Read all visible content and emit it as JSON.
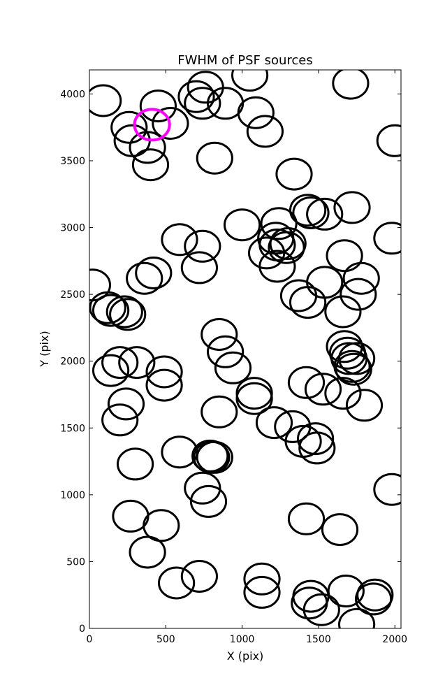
{
  "chart_data": {
    "type": "scatter",
    "title": "FWHM of PSF sources",
    "xlabel": "X (pix)",
    "ylabel": "Y (pix)",
    "xlim": [
      0,
      2040
    ],
    "ylim": [
      0,
      4180
    ],
    "xticks": [
      0,
      500,
      1000,
      1500,
      2000
    ],
    "yticks": [
      0,
      500,
      1000,
      1500,
      2000,
      2500,
      3000,
      3500,
      4000
    ],
    "grid": false,
    "marker": "circle",
    "marker_radius": 115,
    "series": [
      {
        "color": "#000000",
        "points": [
          [
            90,
            3950
          ],
          [
            260,
            3750
          ],
          [
            280,
            3650
          ],
          [
            380,
            3600
          ],
          [
            400,
            3470
          ],
          [
            450,
            3910
          ],
          [
            530,
            3780
          ],
          [
            700,
            3980
          ],
          [
            740,
            3930
          ],
          [
            760,
            4050
          ],
          [
            890,
            3930
          ],
          [
            820,
            3520
          ],
          [
            1050,
            4140
          ],
          [
            1090,
            3860
          ],
          [
            1150,
            3720
          ],
          [
            1710,
            4080
          ],
          [
            2000,
            3650
          ],
          [
            1340,
            3400
          ],
          [
            1430,
            3130
          ],
          [
            1450,
            3110
          ],
          [
            1540,
            3100
          ],
          [
            1720,
            3150
          ],
          [
            1980,
            2920
          ],
          [
            1000,
            3020
          ],
          [
            1240,
            3030
          ],
          [
            1220,
            2920
          ],
          [
            1230,
            2870
          ],
          [
            1290,
            2850
          ],
          [
            1300,
            2880
          ],
          [
            1160,
            2810
          ],
          [
            1230,
            2710
          ],
          [
            590,
            2910
          ],
          [
            740,
            2860
          ],
          [
            720,
            2700
          ],
          [
            420,
            2660
          ],
          [
            360,
            2620
          ],
          [
            20,
            2570
          ],
          [
            120,
            2400
          ],
          [
            140,
            2380
          ],
          [
            230,
            2370
          ],
          [
            250,
            2350
          ],
          [
            1670,
            2790
          ],
          [
            1780,
            2620
          ],
          [
            1760,
            2500
          ],
          [
            1370,
            2490
          ],
          [
            1430,
            2440
          ],
          [
            1540,
            2590
          ],
          [
            1660,
            2370
          ],
          [
            850,
            2200
          ],
          [
            890,
            2070
          ],
          [
            940,
            1950
          ],
          [
            1670,
            2110
          ],
          [
            1690,
            2060
          ],
          [
            1700,
            2020
          ],
          [
            1720,
            1960
          ],
          [
            1730,
            1940
          ],
          [
            1750,
            2020
          ],
          [
            140,
            1930
          ],
          [
            200,
            1990
          ],
          [
            310,
            1990
          ],
          [
            490,
            1920
          ],
          [
            490,
            1820
          ],
          [
            1420,
            1840
          ],
          [
            1530,
            1790
          ],
          [
            1660,
            1760
          ],
          [
            1800,
            1670
          ],
          [
            1080,
            1760
          ],
          [
            1080,
            1720
          ],
          [
            850,
            1620
          ],
          [
            1210,
            1540
          ],
          [
            1330,
            1510
          ],
          [
            1400,
            1400
          ],
          [
            1480,
            1420
          ],
          [
            1490,
            1350
          ],
          [
            240,
            1680
          ],
          [
            200,
            1560
          ],
          [
            300,
            1230
          ],
          [
            590,
            1320
          ],
          [
            790,
            1290
          ],
          [
            800,
            1280
          ],
          [
            820,
            1280
          ],
          [
            740,
            1050
          ],
          [
            780,
            950
          ],
          [
            270,
            840
          ],
          [
            470,
            770
          ],
          [
            380,
            570
          ],
          [
            570,
            340
          ],
          [
            720,
            390
          ],
          [
            1420,
            820
          ],
          [
            1640,
            740
          ],
          [
            1980,
            1040
          ],
          [
            1130,
            370
          ],
          [
            1130,
            270
          ],
          [
            1450,
            240
          ],
          [
            1440,
            190
          ],
          [
            1520,
            140
          ],
          [
            1680,
            280
          ],
          [
            1870,
            250
          ],
          [
            1860,
            220
          ],
          [
            1750,
            30
          ]
        ]
      },
      {
        "color": "#ff00ff",
        "highlight": true,
        "points": [
          [
            410,
            3770
          ]
        ]
      }
    ]
  }
}
